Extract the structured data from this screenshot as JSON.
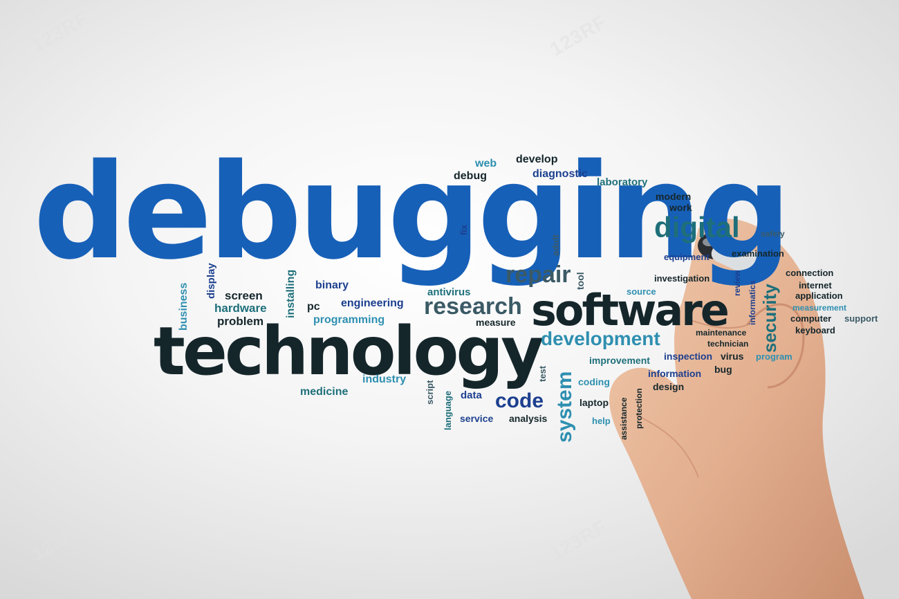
{
  "colors": {
    "blue": "#1760b8",
    "darkblue": "#1c3f8f",
    "teal": "#1e6f7a",
    "slate": "#3b5a66",
    "dark": "#15262b",
    "light": "#2e8fb0"
  },
  "watermark": {
    "text": "123RF",
    "icon": "camera-icon"
  },
  "words": [
    {
      "text": "debugging",
      "c": "blue"
    },
    {
      "text": "technology",
      "c": "dark"
    },
    {
      "text": "software",
      "c": "dark"
    },
    {
      "text": "research",
      "c": "slate"
    },
    {
      "text": "repair",
      "c": "slate"
    },
    {
      "text": "digital",
      "c": "teal"
    },
    {
      "text": "development",
      "c": "light"
    },
    {
      "text": "code",
      "c": "darkblue"
    },
    {
      "text": "system",
      "c": "light"
    },
    {
      "text": "security",
      "c": "teal"
    },
    {
      "text": "web",
      "c": "light"
    },
    {
      "text": "develop",
      "c": "dark"
    },
    {
      "text": "debug",
      "c": "dark"
    },
    {
      "text": "diagnostic",
      "c": "darkblue"
    },
    {
      "text": "laboratory",
      "c": "teal"
    },
    {
      "text": "modern",
      "c": "dark"
    },
    {
      "text": "work",
      "c": "dark"
    },
    {
      "text": "fix",
      "c": "darkblue"
    },
    {
      "text": "adult",
      "c": "slate"
    },
    {
      "text": "safety",
      "c": "slate"
    },
    {
      "text": "examination",
      "c": "dark"
    },
    {
      "text": "equipment",
      "c": "darkblue"
    },
    {
      "text": "connection",
      "c": "dark"
    },
    {
      "text": "internet",
      "c": "dark"
    },
    {
      "text": "application",
      "c": "dark"
    },
    {
      "text": "measurement",
      "c": "light"
    },
    {
      "text": "computer",
      "c": "dark"
    },
    {
      "text": "support",
      "c": "slate"
    },
    {
      "text": "keyboard",
      "c": "dark"
    },
    {
      "text": "investigation",
      "c": "dark"
    },
    {
      "text": "review",
      "c": "darkblue"
    },
    {
      "text": "informatics",
      "c": "darkblue"
    },
    {
      "text": "source",
      "c": "light"
    },
    {
      "text": "tool",
      "c": "slate"
    },
    {
      "text": "antivirus",
      "c": "teal"
    },
    {
      "text": "binary",
      "c": "darkblue"
    },
    {
      "text": "display",
      "c": "darkblue"
    },
    {
      "text": "business",
      "c": "light"
    },
    {
      "text": "screen",
      "c": "dark"
    },
    {
      "text": "hardware",
      "c": "teal"
    },
    {
      "text": "problem",
      "c": "dark"
    },
    {
      "text": "installing",
      "c": "teal"
    },
    {
      "text": "pc",
      "c": "dark"
    },
    {
      "text": "engineering",
      "c": "darkblue"
    },
    {
      "text": "programming",
      "c": "light"
    },
    {
      "text": "measure",
      "c": "dark"
    },
    {
      "text": "maintenance",
      "c": "dark"
    },
    {
      "text": "technician",
      "c": "dark"
    },
    {
      "text": "improvement",
      "c": "teal"
    },
    {
      "text": "inspection",
      "c": "darkblue"
    },
    {
      "text": "virus",
      "c": "dark"
    },
    {
      "text": "program",
      "c": "light"
    },
    {
      "text": "information",
      "c": "darkblue"
    },
    {
      "text": "bug",
      "c": "dark"
    },
    {
      "text": "design",
      "c": "dark"
    },
    {
      "text": "industry",
      "c": "light"
    },
    {
      "text": "medicine",
      "c": "teal"
    },
    {
      "text": "script",
      "c": "slate"
    },
    {
      "text": "language",
      "c": "teal"
    },
    {
      "text": "data",
      "c": "darkblue"
    },
    {
      "text": "test",
      "c": "slate"
    },
    {
      "text": "coding",
      "c": "light"
    },
    {
      "text": "laptop",
      "c": "dark"
    },
    {
      "text": "service",
      "c": "darkblue"
    },
    {
      "text": "analysis",
      "c": "dark"
    },
    {
      "text": "help",
      "c": "light"
    },
    {
      "text": "assistance",
      "c": "dark"
    },
    {
      "text": "protection",
      "c": "dark"
    }
  ]
}
